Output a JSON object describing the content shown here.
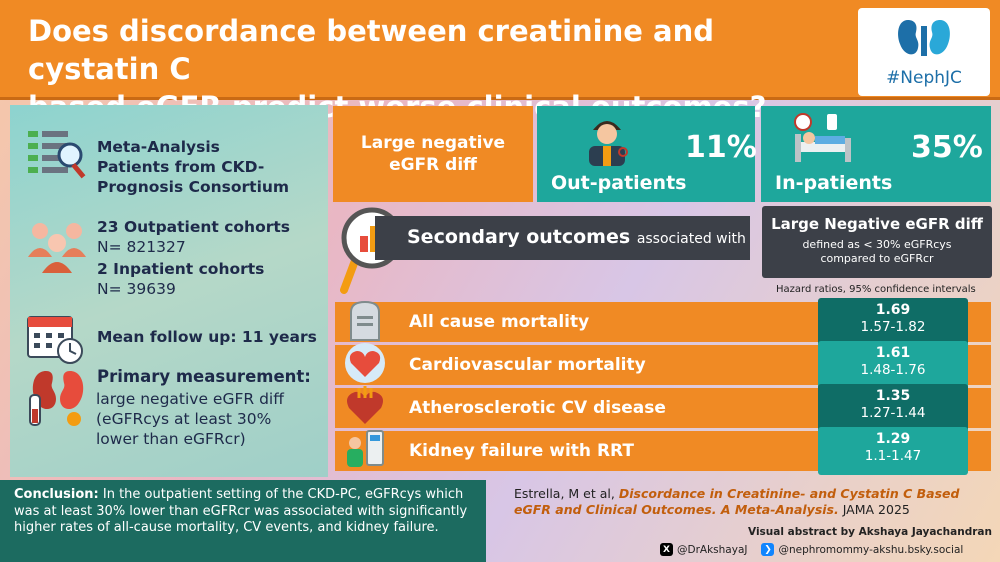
{
  "header": {
    "title_line1": "Does discordance between creatinine and cystatin C",
    "title_line2": "based eGFR predict worse clinical outcomes?",
    "logo_text": "#NephJC"
  },
  "left_panel": {
    "study_line1": "Meta-Analysis",
    "study_line2": "Patients from CKD-",
    "study_line3": "Prognosis Consortium",
    "outpatient_label": "23 Outpatient cohorts",
    "outpatient_n": "N= 821327",
    "inpatient_label": "2 Inpatient cohorts",
    "inpatient_n": "N= 39639",
    "followup": "Mean follow up: 11 years",
    "primary_title": "Primary measurement:",
    "primary_line1": "large negative eGFR diff",
    "primary_line2": "(eGFRcys at least 30%",
    "primary_line3": "lower than eGFRcr)"
  },
  "prevalence": {
    "neg_label_line1": "Large negative",
    "neg_label_line2": "eGFR diff",
    "outpatient_pct": "11%",
    "outpatient_label": "Out-patients",
    "inpatient_pct": "35%",
    "inpatient_label": "In-patients"
  },
  "secondary": {
    "title": "Secondary outcomes",
    "assoc": "associated with",
    "def_title": "Large Negative eGFR diff",
    "def_line1": "defined as  < 30% eGFRcys",
    "def_line2": "compared to eGFRcr",
    "hr_caption": "Hazard ratios, 95% confidence intervals"
  },
  "outcomes": [
    {
      "label": "All cause mortality",
      "hr": "1.69",
      "ci": "1.57-1.82",
      "icon": "tombstone-icon"
    },
    {
      "label": "Cardiovascular mortality",
      "hr": "1.61",
      "ci": "1.48-1.76",
      "icon": "heart-icon"
    },
    {
      "label": "Atherosclerotic CV disease",
      "hr": "1.35",
      "ci": "1.27-1.44",
      "icon": "heart-vessel-icon"
    },
    {
      "label": "Kidney failure with RRT",
      "hr": "1.29",
      "ci": "1.1-1.47",
      "icon": "dialysis-icon"
    }
  ],
  "conclusion": {
    "label": "Conclusion:",
    "text": "In the outpatient setting of the CKD-PC, eGFRcys which was at least 30% lower than eGFRcr was associated with significantly higher rates of all-cause mortality, CV events, and kidney failure."
  },
  "citation": {
    "authors": "Estrella, M et al,",
    "title": "Discordance in Creatinine- and Cystatin C Based eGFR and Clinical Outcomes. A Meta-Analysis.",
    "journal": "JAMA 2025"
  },
  "credit": "Visual abstract by Akshaya Jayachandran",
  "socials": {
    "x_handle": "@DrAkshayaJ",
    "bsky_handle": "@nephromommy-akshu.bsky.social"
  },
  "colors": {
    "orange": "#f08a24",
    "teal": "#1ea79c",
    "dark_teal": "#1c6b60",
    "slate": "#3c4048"
  }
}
